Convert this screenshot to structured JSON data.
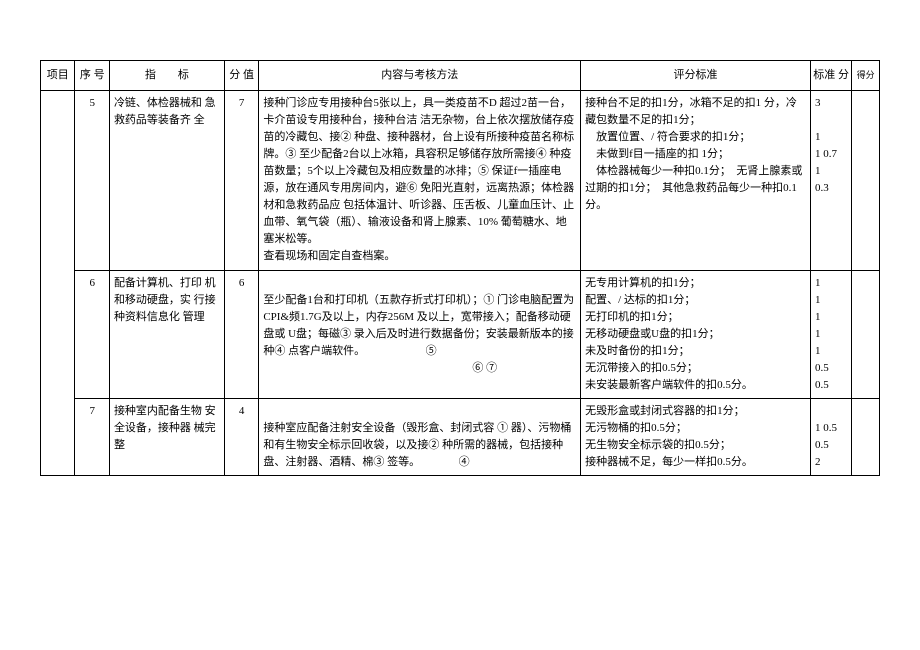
{
  "headers": {
    "project": "项目",
    "seq": "序 号",
    "indicator": "指　　标",
    "score": "分 值",
    "content": "内容与考核方法",
    "standard": "评分标准",
    "std_score": "标准 分",
    "deduct": "得分"
  },
  "rows": [
    {
      "seq": "5",
      "indicator": "冷链、体检器械和 急救药品等装备齐 全",
      "score": "7",
      "content": "接种门诊应专用接种台5张以上，具一类疫苗不D 超过2苗一台，卡介苗设专用接种台，接种台洁 洁无杂物，台上依次摆放储存疫苗的冷藏包、接② 种盘、接种器材，台上设有所接种疫苗名称标牌。③ 至少配备2台以上冰箱，具容积足够储存放所需接④ 种疫苗数量；5个以上冷藏包及相应数量的冰排；⑤ 保证f一插座电源，放在通风专用房间内，避⑥ 免阳光直射，远离热源；体检器材和急救药品应 包括体温计、听诊器、压舌板、儿童血压计、止 血带、氧气袋（瓶）、输液设备和肾上腺素、10% 葡萄糖水、地塞米松等。\n查看现场和固定自查档案。",
      "standard": "接种台不足的扣1分，冰箱不足的扣1 分，冷藏包数量不足的扣1分；\n　放置位置、/ 符合要求的扣1分；\n　未做到f目一插座的扣 1分；\n　体检器械每少一种扣0.1分；　无肾上腺素或过期的扣1分；　其他急救药品每少一种扣0.1 分。",
      "std_score": "3\n\n1\n1 0.7\n1\n0.3"
    },
    {
      "seq": "6",
      "indicator": "配备计算机、打印 机和移动硬盘，实 行接种资料信息化 管理",
      "score": "6",
      "content": "\n至少配备1台和打印机（五款存折式打印机）；① 门诊电脑配置为CPI&频1.7G及以上，内存256M 及以上，宽带接入；配备移动硬盘或 U盘；每磁③ 录入后及时进行数据备份；安装最新版本的接种④ 点客户端软件。　　　　　　⑤\n　　　　　　　　　　　　　　　　　　　⑥ ⑦",
      "standard": "无专用计算机的扣1分；\n配置、/ 达标的扣1分；\n无打印机的扣1分；\n无移动硬盘或U盘的扣1分；\n未及时备份的扣1分；\n无沉带接入的扣0.5分；\n未安装最新客户端软件的扣0.5分。",
      "std_score": "1\n1\n1\n1\n1\n0.5\n0.5"
    },
    {
      "seq": "7",
      "indicator": "接种室内配备生物 安全设备，接种器 械完整",
      "score": "4",
      "content": "\n接种室应配备注射安全设备（毁形盒、封闭式容 ① 器）、污物桶和有生物安全标示回收袋，以及接② 种所需的器械，包括接种盘、注射器、酒精、棉③ 签等。　　　　④",
      "standard": "无毁形盒或封闭式容器的扣1分；\n无污物桶的扣0.5分；\n无生物安全标示袋的扣0.5分；\n接种器械不足，每少一样扣0.5分。",
      "std_score": "\n1 0.5\n0.5\n2"
    }
  ]
}
